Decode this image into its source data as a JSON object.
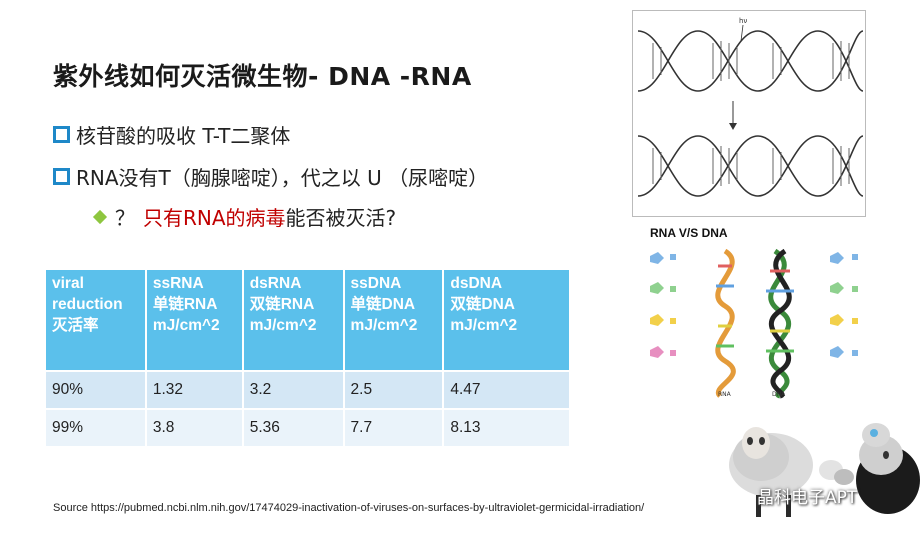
{
  "title": "紫外线如何灭活微生物- DNA -RNA",
  "bullets": [
    "核苷酸的吸收 T-T二聚体",
    "RNA没有T（胸腺嘧啶），代之以 U （尿嘧啶）"
  ],
  "sub_bullet": {
    "mark": "？",
    "red_text": "只有RNA的病毒",
    "rest_text": "能否被灭活?"
  },
  "table": {
    "headers": [
      [
        "viral",
        "reduction",
        "灭活率"
      ],
      [
        "ssRNA",
        "单链RNA",
        "mJ/cm^2"
      ],
      [
        "dsRNA",
        "双链RNA",
        "mJ/cm^2"
      ],
      [
        "ssDNA",
        "单链DNA",
        "mJ/cm^2"
      ],
      [
        "dsDNA",
        "双链DNA",
        "mJ/cm^2"
      ]
    ],
    "rows": [
      [
        "90%",
        "1.32",
        "3.2",
        "2.5",
        "4.47"
      ],
      [
        "99%",
        "3.8",
        "5.36",
        "7.7",
        "8.13"
      ]
    ]
  },
  "source": "Source  https://pubmed.ncbi.nlm.nih.gov/17474029-inactivation-of-viruses-on-surfaces-by-ultraviolet-germicidal-irradiation/",
  "dna_figure": {
    "uv_label": "hν"
  },
  "rna_dna_figure": {
    "title": "RNA V/S DNA",
    "rna_label": "RNA",
    "dna_label": "DNA"
  },
  "watermark": "晶科电子APT",
  "colors": {
    "bullet_square": "#1e88c8",
    "diamond": "#8ec63f",
    "header_bg": "#5bc0eb",
    "row1_bg": "#d4e7f5",
    "row2_bg": "#eaf3fa",
    "red": "#c00000"
  }
}
